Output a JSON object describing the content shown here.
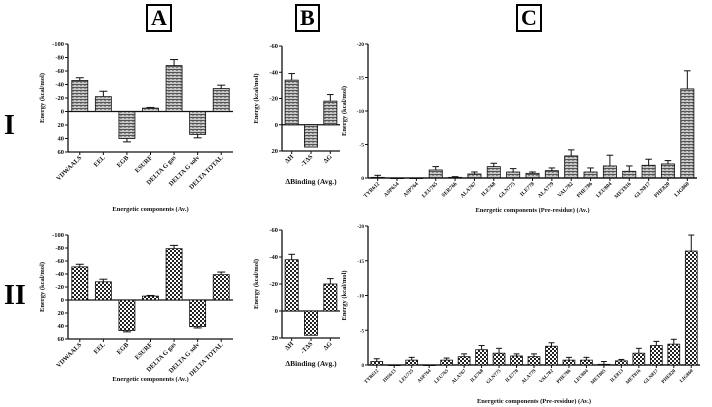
{
  "panel_labels": [
    "A",
    "B",
    "C"
  ],
  "row_labels": [
    "I",
    "II"
  ],
  "colors": {
    "axis": "#111111",
    "bar_dark": "#333333",
    "bar_light": "#dddddd"
  },
  "chart_data": [
    {
      "id": "I-A",
      "type": "bar",
      "title": "",
      "ylabel": "Energy (kcal/mol)",
      "xlabel": "Energetic components (Av.)",
      "ylim": [
        -100,
        60
      ],
      "yticks": [
        -100,
        -80,
        -60,
        -40,
        -20,
        0,
        20,
        40,
        60
      ],
      "axis_inverted": true,
      "categories": [
        "VDWAALS",
        "EEL",
        "EGB",
        "ESURF",
        "DELTA G gas",
        "DELTA G solv",
        "DELTA TOTAL"
      ],
      "values": [
        -46,
        -22,
        40,
        -5,
        -68,
        34,
        -34
      ],
      "errors": [
        4,
        8,
        5,
        1,
        9,
        5,
        5
      ]
    },
    {
      "id": "I-B",
      "type": "bar",
      "title": "",
      "ylabel": "Energy (kcal/mol)",
      "xlabel": "ΔBinding (Avg.)",
      "ylim": [
        -60,
        20
      ],
      "yticks": [
        -60,
        -40,
        -20,
        0,
        20
      ],
      "axis_inverted": true,
      "categories": [
        "ΔH",
        "-TΔS",
        "ΔG"
      ],
      "values": [
        -34,
        17,
        -18
      ],
      "errors": [
        5,
        0,
        5
      ]
    },
    {
      "id": "I-C",
      "type": "bar",
      "title": "",
      "ylabel": "Energy (kcal/mol)",
      "xlabel": "Energetic components (Pre-residue) (Av.)",
      "ylim": [
        -20,
        0
      ],
      "yticks": [
        -20,
        -15,
        -10,
        -5,
        0
      ],
      "axis_inverted": true,
      "categories": [
        "TYR612",
        "ASP654",
        "ASP764",
        "LEU765",
        "SER766",
        "ALA767",
        "ILE768",
        "GLN775",
        "ILE778",
        "ALA779",
        "VAL782",
        "PHE786",
        "LEU804",
        "MET816",
        "GLN817",
        "PHE820",
        "LIG860"
      ],
      "values": [
        -0.1,
        0,
        0,
        -1.2,
        -0.1,
        -0.6,
        -1.7,
        -0.9,
        -0.7,
        -1.1,
        -3.3,
        -0.9,
        -1.8,
        -1.0,
        -1.9,
        -2.1,
        -13.3
      ],
      "errors": [
        0.3,
        0,
        0,
        0.5,
        0.1,
        0.3,
        0.5,
        0.5,
        0.2,
        0.4,
        0.9,
        0.6,
        1.6,
        0.8,
        0.9,
        0.5,
        2.7
      ]
    },
    {
      "id": "II-A",
      "type": "bar",
      "title": "",
      "ylabel": "Energy (kcal/mol)",
      "xlabel": "Energetic components (Av.)",
      "ylim": [
        -100,
        60
      ],
      "yticks": [
        -100,
        -80,
        -60,
        -40,
        -20,
        0,
        20,
        40,
        60
      ],
      "axis_inverted": true,
      "categories": [
        "VDWAALS",
        "EEL",
        "EGB",
        "ESURF",
        "DELTA G gas",
        "DELTA G solv",
        "DELTA TOTAL"
      ],
      "values": [
        -51,
        -28,
        47,
        -6,
        -79,
        41,
        -39
      ],
      "errors": [
        4,
        4,
        2,
        1,
        5,
        2,
        4
      ]
    },
    {
      "id": "II-B",
      "type": "bar",
      "title": "",
      "ylabel": "Energy (kcal/mol)",
      "xlabel": "ΔBinding (Avg.)",
      "ylim": [
        -60,
        20
      ],
      "yticks": [
        -60,
        -40,
        -20,
        0,
        20
      ],
      "axis_inverted": true,
      "categories": [
        "ΔH",
        "-TΔS",
        "ΔG"
      ],
      "values": [
        -38,
        18,
        -20
      ],
      "errors": [
        4,
        0,
        4
      ]
    },
    {
      "id": "II-C",
      "type": "bar",
      "title": "",
      "ylabel": "Energy (kcal/mol)",
      "xlabel": "Energetic components (Pre-residue) (Av.)",
      "ylim": [
        -20,
        0
      ],
      "yticks": [
        -20,
        -15,
        -10,
        -5,
        0
      ],
      "axis_inverted": true,
      "categories": [
        "TYR612",
        "HIS613",
        "LEU725",
        "ASP764",
        "LEU765",
        "ALA767",
        "ILE768",
        "GLN775",
        "ILE778",
        "ALA779",
        "VAL782",
        "PHE786",
        "LEU804",
        "MET805",
        "ILE813",
        "MET816",
        "GLN817",
        "PHE820",
        "LIG860"
      ],
      "values": [
        -0.5,
        0,
        -0.7,
        0,
        -0.7,
        -1.2,
        -2.2,
        -1.7,
        -1.3,
        -1.2,
        -2.7,
        -0.7,
        -0.7,
        -0.1,
        -0.6,
        -1.7,
        -2.8,
        -3.0,
        -16.4
      ],
      "errors": [
        0.4,
        0,
        0.4,
        0,
        0.3,
        0.4,
        0.6,
        0.7,
        0.3,
        0.4,
        0.5,
        0.4,
        0.4,
        0.4,
        0.2,
        0.7,
        0.6,
        0.7,
        2.3
      ]
    }
  ]
}
